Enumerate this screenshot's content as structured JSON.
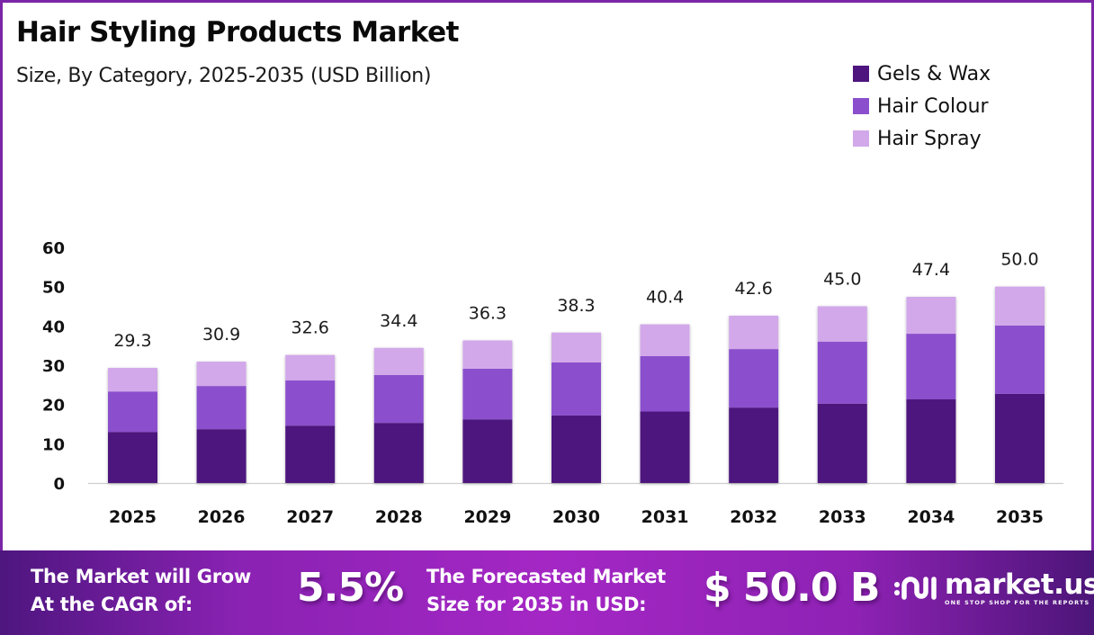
{
  "header": {
    "title": "Hair Styling Products Market",
    "subtitle": "Size, By Category, 2025-2035 (USD Billion)"
  },
  "colors": {
    "frame": "#7a25a6",
    "gels_wax": "#4e157e",
    "hair_colour": "#8b4fcd",
    "hair_spray": "#d2a8ea"
  },
  "chart_data": {
    "type": "bar",
    "stacked": true,
    "title": "Hair Styling Products Market",
    "subtitle": "Size, By Category, 2025-2035 (USD Billion)",
    "xlabel": "",
    "ylabel": "",
    "ylim": [
      0,
      60
    ],
    "yticks": [
      "0",
      "10",
      "20",
      "30",
      "40",
      "50",
      "60"
    ],
    "ytick_values": [
      0,
      10,
      20,
      30,
      40,
      50,
      60
    ],
    "grid": false,
    "legend_position": "top-right",
    "categories": [
      "2025",
      "2026",
      "2027",
      "2028",
      "2029",
      "2030",
      "2031",
      "2032",
      "2033",
      "2034",
      "2035"
    ],
    "series": [
      {
        "name": "Gels & Wax",
        "color": "#4e157e",
        "values": [
          13.0,
          13.7,
          14.6,
          15.3,
          16.2,
          17.2,
          18.2,
          19.2,
          20.2,
          21.3,
          22.7
        ]
      },
      {
        "name": "Hair Colour",
        "color": "#8b4fcd",
        "values": [
          10.3,
          11.0,
          11.5,
          12.2,
          12.9,
          13.5,
          14.1,
          14.9,
          15.8,
          16.7,
          17.4
        ]
      },
      {
        "name": "Hair Spray",
        "color": "#d2a8ea",
        "values": [
          6.0,
          6.2,
          6.5,
          6.9,
          7.2,
          7.6,
          8.1,
          8.5,
          9.0,
          9.4,
          9.9
        ]
      }
    ],
    "totals": [
      29.3,
      30.9,
      32.6,
      34.4,
      36.3,
      38.3,
      40.4,
      42.6,
      45.0,
      47.4,
      50.0
    ],
    "total_labels": [
      "29.3",
      "30.9",
      "32.6",
      "34.4",
      "36.3",
      "38.3",
      "40.4",
      "42.6",
      "45.0",
      "47.4",
      "50.0"
    ]
  },
  "banner": {
    "cagr_text_line1": "The Market will Grow",
    "cagr_text_line2": "At the CAGR of:",
    "cagr_value": "5.5%",
    "forecast_text_line1": "The Forecasted Market",
    "forecast_text_line2": "Size for 2035 in USD:",
    "forecast_value": "$ 50.0 B",
    "logo_name": "market.us",
    "logo_tagline": "ONE STOP SHOP FOR THE REPORTS"
  }
}
